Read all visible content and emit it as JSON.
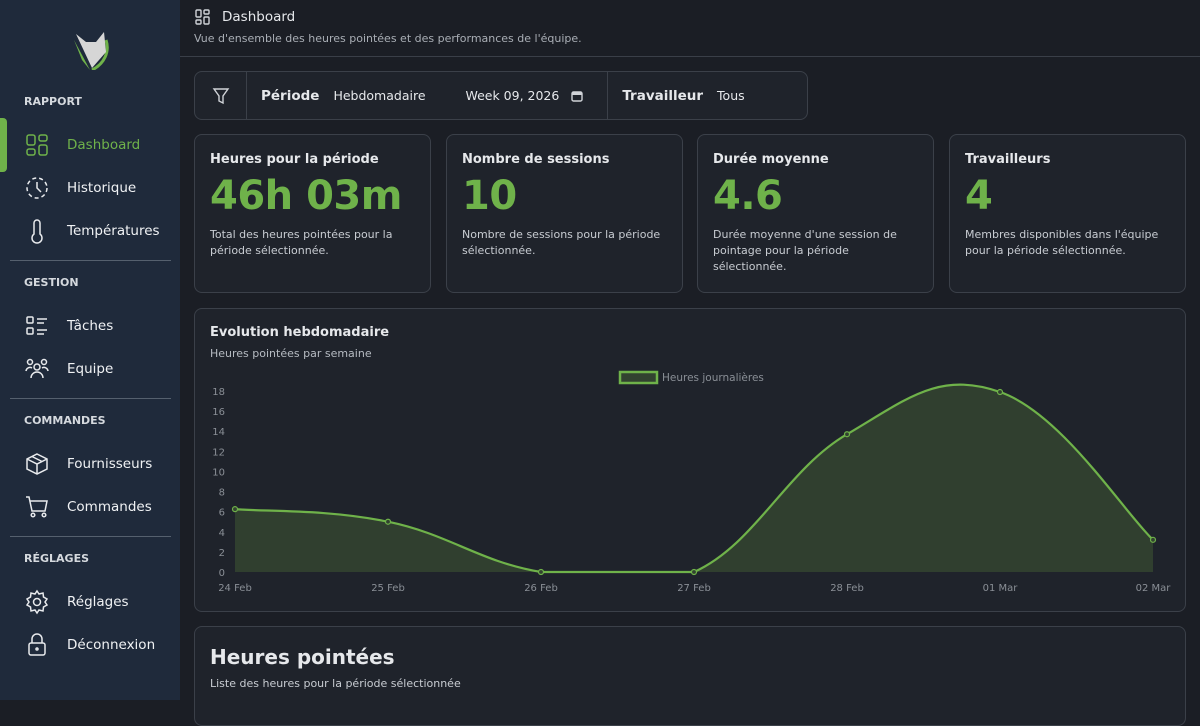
{
  "sidebar": {
    "sections": [
      {
        "label": "RAPPORT",
        "items": [
          {
            "label": "Dashboard",
            "icon": "dashboard-icon",
            "active": true
          },
          {
            "label": "Historique",
            "icon": "history-icon"
          },
          {
            "label": "Températures",
            "icon": "thermometer-icon"
          }
        ]
      },
      {
        "label": "GESTION",
        "items": [
          {
            "label": "Tâches",
            "icon": "tasks-icon"
          },
          {
            "label": "Equipe",
            "icon": "team-icon"
          }
        ]
      },
      {
        "label": "COMMANDES",
        "items": [
          {
            "label": "Fournisseurs",
            "icon": "box-icon"
          },
          {
            "label": "Commandes",
            "icon": "cart-icon"
          }
        ]
      },
      {
        "label": "RÉGLAGES",
        "items": [
          {
            "label": "Réglages",
            "icon": "gear-icon"
          },
          {
            "label": "Déconnexion",
            "icon": "lock-icon"
          }
        ]
      }
    ]
  },
  "header": {
    "title": "Dashboard",
    "subtitle": "Vue d'ensemble des heures pointées et des performances de l'équipe."
  },
  "filter": {
    "period_label": "Période",
    "period_value": "Hebdomadaire",
    "week_value": "Week 09, 2026",
    "worker_label": "Travailleur",
    "worker_value": "Tous"
  },
  "kpis": [
    {
      "title": "Heures pour la période",
      "value": "46h 03m",
      "desc": "Total des heures pointées pour la période sélectionnée."
    },
    {
      "title": "Nombre de sessions",
      "value": "10",
      "desc": "Nombre de sessions pour la période sélectionnée."
    },
    {
      "title": "Durée moyenne",
      "value": "4.6",
      "desc": "Durée moyenne d'une session de pointage pour la période sélectionnée."
    },
    {
      "title": "Travailleurs",
      "value": "4",
      "desc": "Membres disponibles dans l'équipe pour la période sélectionnée."
    }
  ],
  "chart_card": {
    "title": "Evolution hebdomadaire",
    "subtitle": "Heures pointées par semaine"
  },
  "chart_data": {
    "type": "line",
    "title": "Evolution hebdomadaire",
    "categories": [
      "24 Feb",
      "25 Feb",
      "26 Feb",
      "27 Feb",
      "28 Feb",
      "01 Mar",
      "02 Mar"
    ],
    "series": [
      {
        "name": "Heures journalières",
        "values": [
          6.25,
          5.0,
          0,
          0,
          13.7,
          17.9,
          3.2
        ]
      }
    ],
    "ylim": [
      0,
      18
    ],
    "yticks": [
      0,
      2,
      4,
      6,
      8,
      10,
      12,
      14,
      16,
      18
    ],
    "legend": "top-center",
    "fill": true,
    "color": "#6fb24a",
    "fill_color": "#324230"
  },
  "list_card": {
    "title": "Heures pointées",
    "subtitle": "Liste des heures pour la période sélectionnée"
  }
}
